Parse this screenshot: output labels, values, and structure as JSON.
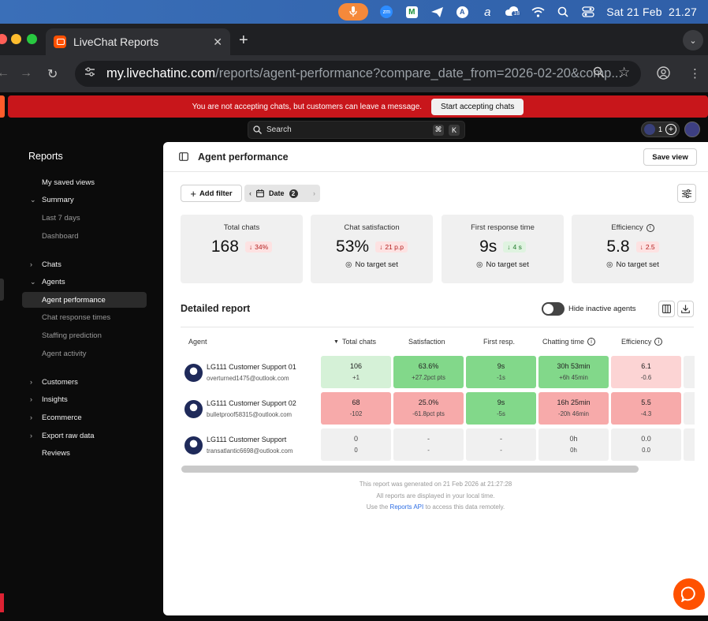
{
  "menubar": {
    "date": "Sat 21 Feb",
    "time": "21.27",
    "badge_count": "18",
    "zoom_label": "zm"
  },
  "browser": {
    "tab_title": "LiveChat Reports",
    "url_host": "my.livechatinc.com",
    "url_path": "/reports/agent-performance?compare_date_from=2026-02-20&comp..."
  },
  "banner": {
    "message": "You are not accepting chats, but customers can leave a message.",
    "button": "Start accepting chats"
  },
  "search": {
    "placeholder": "Search",
    "key1": "⌘",
    "key2": "K"
  },
  "topright": {
    "count": "1"
  },
  "sidebar": {
    "title": "Reports",
    "items": [
      {
        "label": "My saved views",
        "chev": ""
      },
      {
        "label": "Summary",
        "chev": "⌄"
      },
      {
        "label": "Last 7 days",
        "chev": ""
      },
      {
        "label": "Dashboard",
        "chev": ""
      },
      {
        "label": "Chats",
        "chev": "›"
      },
      {
        "label": "Agents",
        "chev": "⌄"
      },
      {
        "label": "Agent performance",
        "chev": ""
      },
      {
        "label": "Chat response times",
        "chev": ""
      },
      {
        "label": "Staffing prediction",
        "chev": ""
      },
      {
        "label": "Agent activity",
        "chev": ""
      },
      {
        "label": "Customers",
        "chev": "›"
      },
      {
        "label": "Insights",
        "chev": "›"
      },
      {
        "label": "Ecommerce",
        "chev": "›"
      },
      {
        "label": "Export raw data",
        "chev": "›"
      },
      {
        "label": "Reviews",
        "chev": ""
      }
    ]
  },
  "panel": {
    "title": "Agent performance",
    "save_view": "Save view",
    "add_filter": "Add filter",
    "date_filter": "Date",
    "date_badge": "2"
  },
  "kpis": [
    {
      "label": "Total chats",
      "value": "168",
      "delta": "34%",
      "target": ""
    },
    {
      "label": "Chat satisfaction",
      "value": "53%",
      "delta": "21 p.p",
      "target": "No target set"
    },
    {
      "label": "First response time",
      "value": "9s",
      "delta": "4 s",
      "target": "No target set"
    },
    {
      "label": "Efficiency",
      "value": "5.8",
      "delta": "2.5",
      "target": "No target set"
    }
  ],
  "report": {
    "title": "Detailed report",
    "hide_inactive": "Hide inactive agents",
    "columns": [
      "Agent",
      "Total chats",
      "Satisfaction",
      "First resp.",
      "Chatting time",
      "Efficiency"
    ],
    "rows": [
      {
        "name": "LG111 Customer Support 01",
        "email": "overturned1475@outlook.com",
        "cells": [
          {
            "v": "106",
            "d": "+1"
          },
          {
            "v": "63.6%",
            "d": "+27.2pct pts"
          },
          {
            "v": "9s",
            "d": "-1s"
          },
          {
            "v": "30h 53min",
            "d": "+6h 45min"
          },
          {
            "v": "6.1",
            "d": "-0.6"
          }
        ]
      },
      {
        "name": "LG111 Customer Support 02",
        "email": "bulletproof58315@outlook.com",
        "cells": [
          {
            "v": "68",
            "d": "-102"
          },
          {
            "v": "25.0%",
            "d": "-61.8pct pts"
          },
          {
            "v": "9s",
            "d": "-5s"
          },
          {
            "v": "16h 25min",
            "d": "-20h 46min"
          },
          {
            "v": "5.5",
            "d": "-4.3"
          }
        ]
      },
      {
        "name": "LG111 Customer Support",
        "email": "transatlantic6698@outlook.com",
        "cells": [
          {
            "v": "0",
            "d": "0"
          },
          {
            "v": "-",
            "d": "-"
          },
          {
            "v": "-",
            "d": "-"
          },
          {
            "v": "0h",
            "d": "0h"
          },
          {
            "v": "0.0",
            "d": "0.0"
          }
        ]
      }
    ],
    "footer_line1": "This report was generated on 21 Feb 2026 at 21:27:28",
    "footer_line2": "All reports are displayed in your local time.",
    "footer_use": "Use the",
    "footer_link": "Reports API",
    "footer_rest": "to access this data remotely."
  },
  "colors": {
    "accent": "#ff5100",
    "banner_red": "#c8161b",
    "good": "#82d88a",
    "good_light": "#d5f1d7",
    "bad": "#f7aaaa",
    "bad_light": "#fcd4d4"
  }
}
